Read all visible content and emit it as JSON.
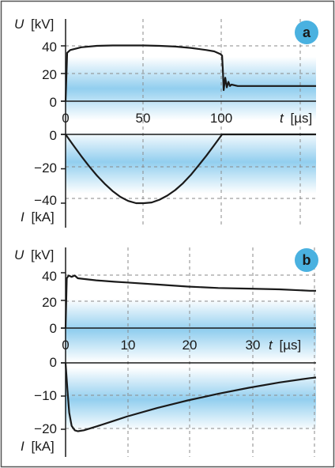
{
  "colors": {
    "background": "#ffffff",
    "band": "#7fc6ec",
    "grid": "#8a8a8a",
    "curve": "#1a1a1a",
    "badge": "#4ab1e0",
    "frame": "#555555"
  },
  "chart_data": [
    {
      "id": "a",
      "type": "line",
      "badge": "a",
      "grid": true,
      "voltage": {
        "ylabel_symbol": "U",
        "ylabel_unit": "[kV]",
        "yticks": [
          "40",
          "20",
          "0"
        ],
        "ylim": [
          0,
          46
        ],
        "x": [
          0,
          1,
          3,
          10,
          20,
          30,
          40,
          50,
          60,
          70,
          80,
          90,
          95,
          99,
          100,
          100.5,
          101,
          102,
          103,
          104,
          105,
          106,
          110,
          120,
          130,
          140,
          150,
          160
        ],
        "values": [
          0,
          35,
          37,
          39,
          40,
          40.3,
          40.3,
          40.3,
          40,
          39.5,
          38.5,
          37,
          36,
          34,
          33,
          22,
          8,
          17,
          10,
          14,
          11,
          12,
          11,
          11,
          11,
          11,
          11,
          11
        ]
      },
      "current": {
        "ylabel_symbol": "I",
        "ylabel_unit": "[kA]",
        "yticks": [
          "0",
          "−20",
          "−40"
        ],
        "ylim": [
          -46,
          0
        ],
        "x": [
          0,
          5,
          10,
          15,
          20,
          25,
          30,
          35,
          40,
          45,
          50,
          55,
          60,
          65,
          70,
          75,
          80,
          85,
          90,
          95,
          100,
          110,
          120,
          130,
          140,
          150,
          160
        ],
        "values": [
          0,
          -6.4,
          -12.6,
          -18.5,
          -23.9,
          -28.7,
          -32.9,
          -36.3,
          -38.7,
          -40.0,
          -40.0,
          -39.6,
          -38.0,
          -35.6,
          -32.4,
          -28.4,
          -23.6,
          -18.0,
          -12.3,
          -6.2,
          0,
          0,
          0,
          0,
          0,
          0,
          0
        ]
      },
      "xlabel_symbol": "t",
      "xlabel_unit": "[µs]",
      "xticks": [
        "0",
        "50",
        "100"
      ],
      "xtick_values": [
        0,
        50,
        100
      ],
      "xlim": [
        0,
        160
      ]
    },
    {
      "id": "b",
      "type": "line",
      "badge": "b",
      "grid": true,
      "voltage": {
        "ylabel_symbol": "U",
        "ylabel_unit": "[kV]",
        "yticks": [
          "40",
          "20",
          "0"
        ],
        "ylim": [
          0,
          46
        ],
        "x": [
          0,
          0.2,
          0.5,
          1,
          1.5,
          2,
          3,
          5,
          8,
          10,
          15,
          20,
          25,
          30,
          35,
          40,
          41
        ],
        "values": [
          0,
          36,
          38,
          37,
          38,
          36,
          35.5,
          34.5,
          33.5,
          33,
          31.5,
          30,
          29,
          28.5,
          28,
          27,
          27
        ]
      },
      "current": {
        "ylabel_symbol": "I",
        "ylabel_unit": "[kA]",
        "yticks": [
          "0",
          "−10",
          "−20"
        ],
        "ylim": [
          -22,
          0
        ],
        "x": [
          0,
          0.3,
          0.6,
          1,
          1.5,
          2,
          3,
          5,
          8,
          10,
          15,
          20,
          25,
          30,
          35,
          40,
          41
        ],
        "values": [
          0,
          -8,
          -15,
          -19,
          -20.3,
          -20.6,
          -20.3,
          -19.2,
          -17.4,
          -16.2,
          -13.6,
          -11.3,
          -9.3,
          -7.5,
          -5.9,
          -4.6,
          -4.4
        ]
      },
      "xlabel_symbol": "t",
      "xlabel_unit": "[µs]",
      "xticks": [
        "0",
        "10",
        "20",
        "30"
      ],
      "xtick_values": [
        0,
        10,
        20,
        30
      ],
      "xlim": [
        0,
        41
      ]
    }
  ]
}
